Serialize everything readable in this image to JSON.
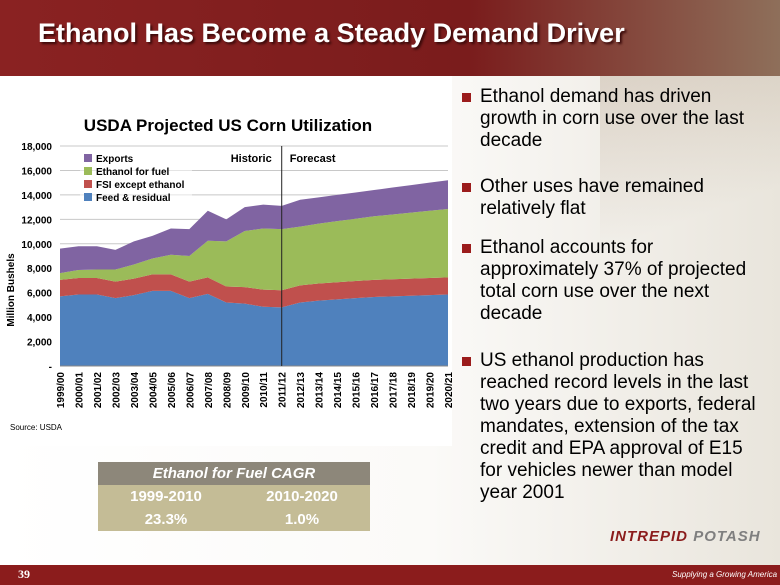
{
  "header": {
    "title": "Ethanol Has Become a Steady Demand Driver"
  },
  "chart_data": {
    "type": "stacked-area",
    "title": "USDA Projected US Corn Utilization",
    "y_label": "Million Bushels",
    "source": "Source: USDA",
    "annotations": [
      "Historic",
      "Forecast"
    ],
    "forecast_start": "2011/12",
    "categories": [
      "1999/00",
      "2000/01",
      "2001/02",
      "2002/03",
      "2003/04",
      "2004/05",
      "2005/06",
      "2006/07",
      "2007/08",
      "2008/09",
      "2009/10",
      "2010/11",
      "2011/12",
      "2012/13",
      "2013/14",
      "2014/15",
      "2015/16",
      "2016/17",
      "2017/18",
      "2018/19",
      "2019/20",
      "2020/21"
    ],
    "series": [
      {
        "name": "Feed & residual",
        "color": "#4f81bd",
        "values": [
          5700,
          5850,
          5850,
          5550,
          5800,
          6150,
          6150,
          5550,
          5900,
          5200,
          5100,
          4850,
          4800,
          5200,
          5350,
          5450,
          5550,
          5650,
          5700,
          5750,
          5800,
          5850
        ]
      },
      {
        "name": "FSI except ethanol",
        "color": "#c0504d",
        "values": [
          1350,
          1350,
          1350,
          1350,
          1350,
          1350,
          1350,
          1350,
          1350,
          1300,
          1350,
          1400,
          1400,
          1400,
          1400,
          1400,
          1400,
          1400,
          1400,
          1400,
          1400,
          1400
        ]
      },
      {
        "name": "Ethanol for fuel",
        "color": "#9bbb59",
        "values": [
          550,
          650,
          700,
          1000,
          1150,
          1300,
          1600,
          2100,
          3000,
          3700,
          4600,
          5000,
          5000,
          4800,
          4900,
          5000,
          5100,
          5200,
          5300,
          5400,
          5500,
          5600
        ]
      },
      {
        "name": "Exports",
        "color": "#8064a2",
        "values": [
          2000,
          1950,
          1900,
          1600,
          1900,
          1850,
          2150,
          2200,
          2450,
          1800,
          1950,
          1950,
          1900,
          2200,
          2150,
          2150,
          2150,
          2150,
          2200,
          2250,
          2300,
          2350
        ]
      }
    ],
    "ylim": [
      0,
      18000
    ],
    "yticks": [
      {
        "value": 0,
        "label": "-"
      },
      {
        "value": 2000,
        "label": "2,000"
      },
      {
        "value": 4000,
        "label": "4,000"
      },
      {
        "value": 6000,
        "label": "6,000"
      },
      {
        "value": 8000,
        "label": "8,000"
      },
      {
        "value": 10000,
        "label": "10,000"
      },
      {
        "value": 12000,
        "label": "12,000"
      },
      {
        "value": 14000,
        "label": "14,000"
      },
      {
        "value": 16000,
        "label": "16,000"
      },
      {
        "value": 18000,
        "label": "18,000"
      }
    ],
    "grid": true
  },
  "bullets": [
    "Ethanol demand has driven growth in corn use over the last decade",
    "Other uses have remained relatively flat",
    "Ethanol accounts for approximately 37% of projected total corn use over the next decade",
    "US ethanol production has reached record levels in the last two years due to exports, federal mandates, extension of the tax credit and EPA approval of E15 for vehicles newer than model year 2001"
  ],
  "table": {
    "title": "Ethanol for Fuel CAGR",
    "header": [
      "1999-2010",
      "2010-2020"
    ],
    "rows": [
      [
        "23.3%",
        "1.0%"
      ]
    ]
  },
  "footer": {
    "page": "39",
    "logo": [
      "INTREPID",
      "POTASH"
    ],
    "tagline": "Supplying a Growing America"
  }
}
